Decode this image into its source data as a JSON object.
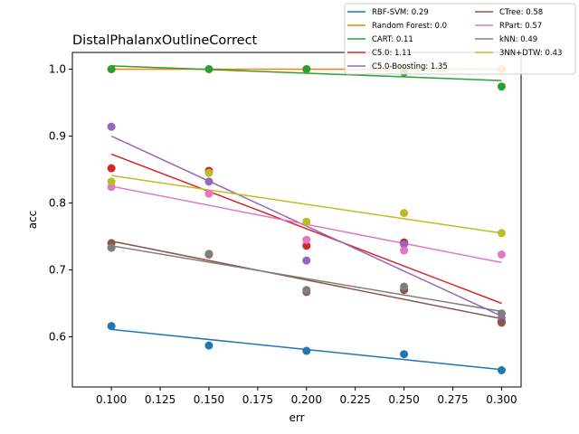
{
  "chart_data": {
    "type": "scatter",
    "title": "DistalPhalanxOutlineCorrect",
    "xlabel": "err",
    "ylabel": "acc",
    "xlim": [
      0.08,
      0.31
    ],
    "ylim": [
      0.525,
      1.025
    ],
    "x": [
      0.1,
      0.15,
      0.2,
      0.25,
      0.3
    ],
    "x_ticks": [
      "0.100",
      "0.125",
      "0.150",
      "0.175",
      "0.200",
      "0.225",
      "0.250",
      "0.275",
      "0.300"
    ],
    "y_ticks": [
      "0.6",
      "0.7",
      "0.8",
      "0.9",
      "1.0"
    ],
    "grid": false,
    "legend_position": "top-right (outside plot)",
    "series": [
      {
        "name": "RBF-SVM: 0.29",
        "color": "#1f77b4",
        "values": [
          0.616,
          0.587,
          0.579,
          0.574,
          0.55
        ],
        "fit": [
          0.611,
          0.551
        ]
      },
      {
        "name": "Random Forest: 0.0",
        "color": "#ff7f0e",
        "values": [
          1.0,
          1.0,
          1.0,
          1.0,
          1.0
        ],
        "fit": [
          1.0,
          1.0
        ]
      },
      {
        "name": "CART: 0.11",
        "color": "#2ca02c",
        "values": [
          1.0,
          1.0,
          1.0,
          0.995,
          0.974
        ],
        "fit": [
          1.005,
          0.983
        ]
      },
      {
        "name": "C5.0: 1.11",
        "color": "#d62728",
        "values": [
          0.852,
          0.848,
          0.736,
          0.741,
          0.623
        ],
        "fit": [
          0.873,
          0.65
        ]
      },
      {
        "name": "C5.0-Boosting: 1.35",
        "color": "#9467bd",
        "values": [
          0.914,
          0.832,
          0.714,
          0.738,
          0.628
        ],
        "fit": [
          0.9,
          0.631
        ]
      },
      {
        "name": "CTree: 0.58",
        "color": "#8c564b",
        "values": [
          0.74,
          0.723,
          0.667,
          0.67,
          0.621
        ],
        "fit": [
          0.743,
          0.627
        ]
      },
      {
        "name": "RPart: 0.57",
        "color": "#e377c2",
        "values": [
          0.824,
          0.814,
          0.745,
          0.729,
          0.723
        ],
        "fit": [
          0.825,
          0.711
        ]
      },
      {
        "name": "kNN: 0.49",
        "color": "#7f7f7f",
        "values": [
          0.733,
          0.724,
          0.67,
          0.675,
          0.635
        ],
        "fit": [
          0.736,
          0.638
        ]
      },
      {
        "name": "3NN+DTW: 0.43",
        "color": "#bcbd22",
        "values": [
          0.832,
          0.845,
          0.772,
          0.785,
          0.755
        ],
        "fit": [
          0.841,
          0.755
        ]
      }
    ]
  }
}
